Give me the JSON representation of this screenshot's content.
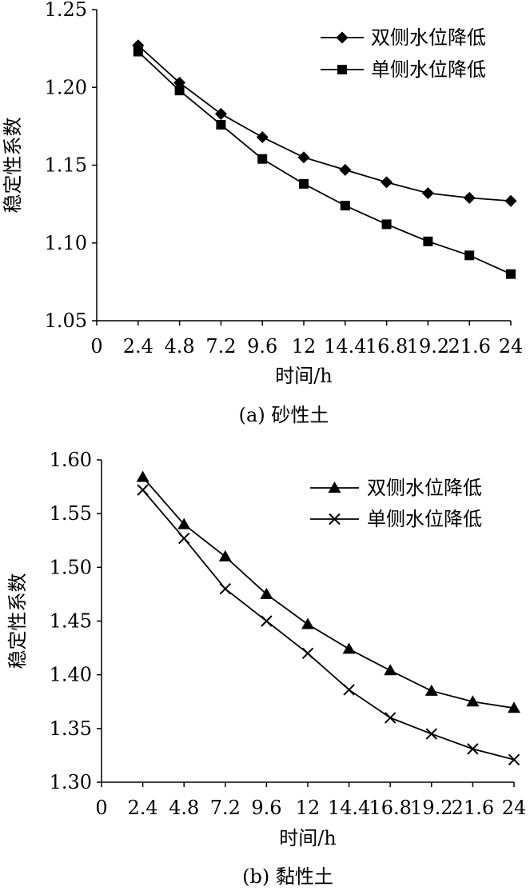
{
  "chart_data": [
    {
      "type": "line",
      "caption": "(a) 砂性土",
      "xlabel": "时间/h",
      "ylabel": "稳定性系数",
      "x_ticks": [
        "0",
        "2.4",
        "4.8",
        "7.2",
        "9.6",
        "12",
        "14.4",
        "16.8",
        "19.2",
        "21.6",
        "24"
      ],
      "xlim": [
        0,
        24
      ],
      "y_ticks": [
        "1.05",
        "1.10",
        "1.15",
        "1.20",
        "1.25"
      ],
      "ylim": [
        1.05,
        1.25
      ],
      "grid": false,
      "legend_position": "top-right",
      "x": [
        2.4,
        4.8,
        7.2,
        9.6,
        12,
        14.4,
        16.8,
        19.2,
        21.6,
        24
      ],
      "series": [
        {
          "name": "双侧水位降低",
          "marker": "diamond",
          "values": [
            1.227,
            1.203,
            1.183,
            1.168,
            1.155,
            1.147,
            1.139,
            1.132,
            1.129,
            1.127
          ]
        },
        {
          "name": "单侧水位降低",
          "marker": "square",
          "values": [
            1.223,
            1.198,
            1.176,
            1.154,
            1.138,
            1.124,
            1.112,
            1.101,
            1.092,
            1.08
          ]
        }
      ]
    },
    {
      "type": "line",
      "caption": "(b) 黏性土",
      "xlabel": "时间/h",
      "ylabel": "稳定性系数",
      "x_ticks": [
        "0",
        "2.4",
        "4.8",
        "7.2",
        "9.6",
        "12",
        "14.4",
        "16.8",
        "19.2",
        "21.6",
        "24"
      ],
      "xlim": [
        0,
        24
      ],
      "y_ticks": [
        "1.30",
        "1.35",
        "1.40",
        "1.45",
        "1.50",
        "1.55",
        "1.60"
      ],
      "ylim": [
        1.3,
        1.6
      ],
      "grid": false,
      "legend_position": "top-right",
      "x": [
        2.4,
        4.8,
        7.2,
        9.6,
        12,
        14.4,
        16.8,
        19.2,
        21.6,
        24
      ],
      "series": [
        {
          "name": "双侧水位降低",
          "marker": "triangle",
          "values": [
            1.584,
            1.54,
            1.51,
            1.475,
            1.447,
            1.424,
            1.404,
            1.385,
            1.375,
            1.369
          ]
        },
        {
          "name": "单侧水位降低",
          "marker": "cross",
          "values": [
            1.572,
            1.527,
            1.48,
            1.45,
            1.42,
            1.386,
            1.36,
            1.345,
            1.331,
            1.321
          ]
        }
      ]
    }
  ]
}
